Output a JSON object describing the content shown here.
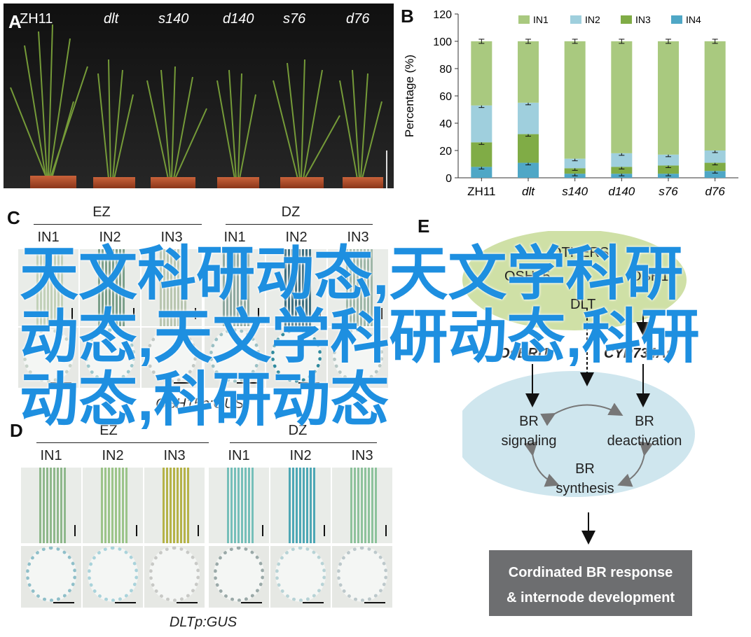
{
  "panel_a": {
    "letter": "A",
    "labels": [
      "ZH11",
      "dlt",
      "s140",
      "d140",
      "s76",
      "d76"
    ],
    "label_italic": [
      false,
      true,
      true,
      true,
      true,
      true
    ]
  },
  "panel_b": {
    "letter": "B",
    "legend": [
      "IN1",
      "IN2",
      "IN3",
      "IN4"
    ]
  },
  "chart_data": {
    "type": "bar",
    "stacked": true,
    "categories": [
      "ZH11",
      "dlt",
      "s140",
      "d140",
      "s76",
      "d76"
    ],
    "series": [
      {
        "name": "IN4",
        "values": [
          8,
          11,
          3,
          3,
          3,
          5
        ]
      },
      {
        "name": "IN3",
        "values": [
          18,
          21,
          4,
          5,
          6,
          6
        ]
      },
      {
        "name": "IN2",
        "values": [
          27,
          23,
          7,
          10,
          8,
          9
        ]
      },
      {
        "name": "IN1",
        "values": [
          47,
          45,
          86,
          82,
          83,
          80
        ]
      }
    ],
    "colors": {
      "IN1": "#a9c97f",
      "IN2": "#9fcfdd",
      "IN3": "#80ac46",
      "IN4": "#4fa7c6"
    },
    "ylabel": "Percentage (%)",
    "ylim": [
      0,
      120
    ],
    "yticks": [
      0,
      20,
      40,
      60,
      80,
      100,
      120
    ],
    "legend_position": "top",
    "error_bars": true
  },
  "panel_c": {
    "letter": "C",
    "groups": [
      "EZ",
      "DZ"
    ],
    "columns": [
      "IN1",
      "IN2",
      "IN3",
      "IN1",
      "IN2",
      "IN3"
    ],
    "caption": "OSH15p:GUS"
  },
  "panel_d": {
    "letter": "D",
    "groups": [
      "EZ",
      "DZ"
    ],
    "columns": [
      "IN1",
      "IN2",
      "IN3",
      "IN1",
      "IN2",
      "IN3"
    ],
    "caption": "DLTp:GUS",
    "top_colors": [
      "#8fb88c",
      "#9cc48a",
      "#b5b348",
      "#76bfb9",
      "#4ea7b5",
      "#8ec29c"
    ]
  },
  "panel_e": {
    "letter": "E",
    "others": [
      "OTHERS",
      "OSH15",
      "OSH1",
      "DLT"
    ],
    "regulators": [
      "OsBRI1",
      "CYP734As"
    ],
    "nodes": {
      "signaling": [
        "BR",
        "signaling"
      ],
      "deactivation": [
        "BR",
        "deactivation"
      ],
      "synthesis": [
        "BR",
        "synthesis"
      ]
    },
    "result": [
      "Cordinated BR response",
      "& internode development"
    ]
  },
  "watermark": "天文科研动态,天文学科研动态,天文学科研动态,科研动态,科研动态"
}
